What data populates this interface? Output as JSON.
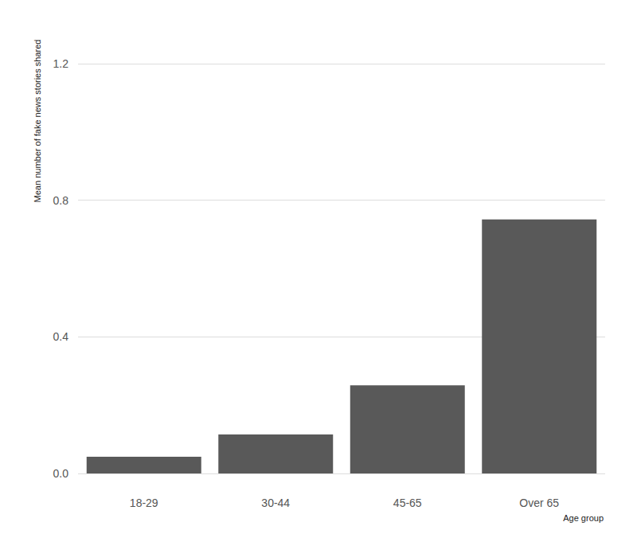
{
  "chart_data": {
    "type": "bar",
    "categories": [
      "18-29",
      "30-44",
      "45-65",
      "Over 65"
    ],
    "values": [
      0.049,
      0.114,
      0.258,
      0.744
    ],
    "color": "#595959",
    "y_label": "Mean number of fake news stories shared",
    "x_label": "Age group",
    "ylim": [
      0,
      1.2
    ],
    "yticks": [
      {
        "value": 0,
        "label": "0.0"
      },
      0.4,
      0.8,
      1.2
    ],
    "grid": true
  }
}
